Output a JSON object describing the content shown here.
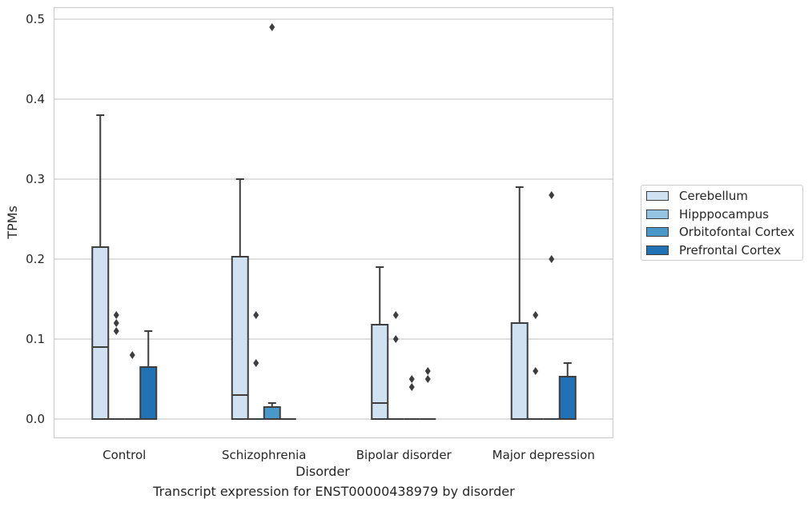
{
  "chart_data": {
    "type": "box",
    "title": "",
    "caption": "Transcript expression for ENST00000438979 by disorder",
    "xlabel": "Disorder",
    "ylabel": "TPMs",
    "ylim": [
      -0.023,
      0.515
    ],
    "yticks": [
      0.0,
      0.1,
      0.2,
      0.3,
      0.4,
      0.5
    ],
    "ytick_labels": [
      "0.0",
      "0.1",
      "0.2",
      "0.3",
      "0.4",
      "0.5"
    ],
    "categories": [
      "Control",
      "Schizophrenia",
      "Bipolar disorder",
      "Major depression"
    ],
    "grid": true,
    "legend_position": "right",
    "series": [
      {
        "name": "Cerebellum",
        "color": "#d0e1f2",
        "boxes": [
          {
            "q1": 0.0,
            "median": 0.09,
            "q3": 0.215,
            "whislo": 0.0,
            "whishi": 0.38,
            "fliers": []
          },
          {
            "q1": 0.0,
            "median": 0.03,
            "q3": 0.203,
            "whislo": 0.0,
            "whishi": 0.3,
            "fliers": []
          },
          {
            "q1": 0.0,
            "median": 0.02,
            "q3": 0.118,
            "whislo": 0.0,
            "whishi": 0.19,
            "fliers": []
          },
          {
            "q1": 0.0,
            "median": 0.0,
            "q3": 0.12,
            "whislo": 0.0,
            "whishi": 0.29,
            "fliers": []
          }
        ]
      },
      {
        "name": "Hipppocampus",
        "color": "#94c4df",
        "boxes": [
          {
            "q1": 0.0,
            "median": 0.0,
            "q3": 0.0,
            "whislo": 0.0,
            "whishi": 0.0,
            "fliers": [
              0.11,
              0.12,
              0.13
            ]
          },
          {
            "q1": 0.0,
            "median": 0.0,
            "q3": 0.0,
            "whislo": 0.0,
            "whishi": 0.0,
            "fliers": [
              0.07,
              0.13
            ]
          },
          {
            "q1": 0.0,
            "median": 0.0,
            "q3": 0.0,
            "whislo": 0.0,
            "whishi": 0.0,
            "fliers": [
              0.1,
              0.13
            ]
          },
          {
            "q1": 0.0,
            "median": 0.0,
            "q3": 0.0,
            "whislo": 0.0,
            "whishi": 0.0,
            "fliers": [
              0.06,
              0.13
            ]
          }
        ]
      },
      {
        "name": "Orbitofontal Cortex",
        "color": "#4a98c9",
        "boxes": [
          {
            "q1": 0.0,
            "median": 0.0,
            "q3": 0.0,
            "whislo": 0.0,
            "whishi": 0.0,
            "fliers": [
              0.08
            ]
          },
          {
            "q1": 0.0,
            "median": 0.0,
            "q3": 0.015,
            "whislo": 0.0,
            "whishi": 0.02,
            "fliers": [
              0.49
            ]
          },
          {
            "q1": 0.0,
            "median": 0.0,
            "q3": 0.0,
            "whislo": 0.0,
            "whishi": 0.0,
            "fliers": [
              0.04,
              0.05
            ]
          },
          {
            "q1": 0.0,
            "median": 0.0,
            "q3": 0.0,
            "whislo": 0.0,
            "whishi": 0.0,
            "fliers": [
              0.2,
              0.28
            ]
          }
        ]
      },
      {
        "name": "Prefrontal Cortex",
        "color": "#2171b5",
        "boxes": [
          {
            "q1": 0.0,
            "median": 0.0,
            "q3": 0.065,
            "whislo": 0.0,
            "whishi": 0.11,
            "fliers": []
          },
          {
            "q1": 0.0,
            "median": 0.0,
            "q3": 0.0,
            "whislo": 0.0,
            "whishi": 0.0,
            "fliers": []
          },
          {
            "q1": 0.0,
            "median": 0.0,
            "q3": 0.0,
            "whislo": 0.0,
            "whishi": 0.0,
            "fliers": [
              0.05,
              0.06
            ]
          },
          {
            "q1": 0.0,
            "median": 0.0,
            "q3": 0.053,
            "whislo": 0.0,
            "whishi": 0.07,
            "fliers": []
          }
        ]
      }
    ]
  }
}
